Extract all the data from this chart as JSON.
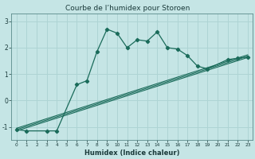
{
  "title": "Courbe de l’humidex pour Storoen",
  "xlabel": "Humidex (Indice chaleur)",
  "bg_color": "#c5e5e5",
  "line_color": "#1a6b5a",
  "grid_color": "#aed4d4",
  "xlim": [
    -0.5,
    23.5
  ],
  "ylim": [
    -1.5,
    3.3
  ],
  "yticks": [
    -1,
    0,
    1,
    2,
    3
  ],
  "xticks": [
    0,
    1,
    2,
    3,
    4,
    5,
    6,
    7,
    8,
    9,
    10,
    11,
    12,
    13,
    14,
    15,
    16,
    17,
    18,
    19,
    20,
    21,
    22,
    23
  ],
  "reg_lines": [
    {
      "x": [
        0,
        23
      ],
      "y": [
        -1.15,
        1.63
      ]
    },
    {
      "x": [
        0,
        23
      ],
      "y": [
        -1.1,
        1.68
      ]
    },
    {
      "x": [
        0,
        23
      ],
      "y": [
        -1.05,
        1.73
      ]
    }
  ],
  "main_x": [
    0,
    1,
    3,
    4,
    6,
    7,
    8,
    9,
    10,
    11,
    12,
    13,
    14,
    15,
    16,
    17,
    18,
    19,
    21,
    22,
    23
  ],
  "main_y": [
    -1.1,
    -1.15,
    -1.15,
    -1.15,
    0.6,
    0.75,
    1.85,
    2.7,
    2.55,
    2.0,
    2.3,
    2.25,
    2.6,
    2.0,
    1.95,
    1.7,
    1.3,
    1.2,
    1.55,
    1.6,
    1.65
  ]
}
